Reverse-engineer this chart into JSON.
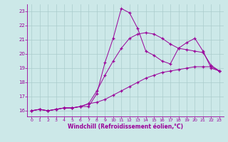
{
  "xlabel": "Windchill (Refroidissement éolien,°C)",
  "bg_color": "#cce8e8",
  "line_color": "#990099",
  "grid_color": "#aacccc",
  "xlim": [
    -0.5,
    23.5
  ],
  "ylim": [
    15.6,
    23.5
  ],
  "yticks": [
    16,
    17,
    18,
    19,
    20,
    21,
    22,
    23
  ],
  "xticks": [
    0,
    1,
    2,
    3,
    4,
    5,
    6,
    7,
    8,
    9,
    10,
    11,
    12,
    13,
    14,
    15,
    16,
    17,
    18,
    19,
    20,
    21,
    22,
    23
  ],
  "line1_x": [
    0,
    1,
    2,
    3,
    4,
    5,
    6,
    7,
    8,
    9,
    10,
    11,
    12,
    13,
    14,
    15,
    16,
    17,
    18,
    19,
    20,
    21,
    22,
    23
  ],
  "line1_y": [
    16.0,
    16.1,
    16.0,
    16.1,
    16.2,
    16.2,
    16.3,
    16.3,
    17.2,
    19.4,
    21.1,
    23.2,
    22.9,
    21.8,
    20.2,
    19.9,
    19.5,
    19.3,
    20.4,
    20.8,
    21.1,
    20.2,
    19.0,
    18.8
  ],
  "line2_x": [
    0,
    1,
    2,
    3,
    4,
    5,
    6,
    7,
    8,
    9,
    10,
    11,
    12,
    13,
    14,
    15,
    16,
    17,
    18,
    19,
    20,
    21,
    22,
    23
  ],
  "line2_y": [
    16.0,
    16.1,
    16.0,
    16.1,
    16.2,
    16.2,
    16.3,
    16.5,
    17.4,
    18.5,
    19.5,
    20.4,
    21.1,
    21.4,
    21.5,
    21.4,
    21.1,
    20.7,
    20.4,
    20.3,
    20.2,
    20.1,
    19.2,
    18.8
  ],
  "line3_x": [
    0,
    1,
    2,
    3,
    4,
    5,
    6,
    7,
    8,
    9,
    10,
    11,
    12,
    13,
    14,
    15,
    16,
    17,
    18,
    19,
    20,
    21,
    22,
    23
  ],
  "line3_y": [
    16.0,
    16.1,
    16.0,
    16.1,
    16.2,
    16.2,
    16.3,
    16.5,
    16.6,
    16.8,
    17.1,
    17.4,
    17.7,
    18.0,
    18.3,
    18.5,
    18.7,
    18.8,
    18.9,
    19.0,
    19.1,
    19.1,
    19.1,
    18.8
  ]
}
